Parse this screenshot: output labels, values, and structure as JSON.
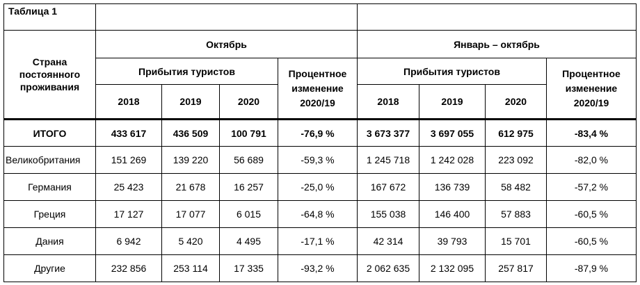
{
  "caption": "Таблица 1",
  "headers": {
    "country": "Страна постоянного проживания",
    "october": "Октябрь",
    "jan_oct": "Январь – октябрь",
    "arrivals": "Прибытия туристов",
    "pct_change": "Процентное изменение 2020/19",
    "years": [
      "2018",
      "2019",
      "2020"
    ]
  },
  "rows": [
    {
      "country": "ИТОГО",
      "oct": [
        "433 617",
        "436 509",
        "100 791"
      ],
      "oct_pct": "-76,9 %",
      "ytd": [
        "3 673 377",
        "3 697 055",
        "612 975"
      ],
      "ytd_pct": "-83,4 %"
    },
    {
      "country": "Великобритания",
      "oct": [
        "151 269",
        "139 220",
        "56 689"
      ],
      "oct_pct": "-59,3 %",
      "ytd": [
        "1 245 718",
        "1 242 028",
        "223 092"
      ],
      "ytd_pct": "-82,0 %"
    },
    {
      "country": "Германия",
      "oct": [
        "25 423",
        "21 678",
        "16 257"
      ],
      "oct_pct": "-25,0 %",
      "ytd": [
        "167 672",
        "136 739",
        "58 482"
      ],
      "ytd_pct": "-57,2 %"
    },
    {
      "country": "Греция",
      "oct": [
        "17 127",
        "17 077",
        "6 015"
      ],
      "oct_pct": "-64,8 %",
      "ytd": [
        "155 038",
        "146 400",
        "57 883"
      ],
      "ytd_pct": "-60,5 %"
    },
    {
      "country": "Дания",
      "oct": [
        "6 942",
        "5 420",
        "4 495"
      ],
      "oct_pct": "-17,1 %",
      "ytd": [
        "42 314",
        "39 793",
        "15 701"
      ],
      "ytd_pct": "-60,5 %"
    },
    {
      "country": "Другие",
      "oct": [
        "232 856",
        "253 114",
        "17 335"
      ],
      "oct_pct": "-93,2 %",
      "ytd": [
        "2 062 635",
        "2 132 095",
        "257 817"
      ],
      "ytd_pct": "-87,9 %"
    }
  ]
}
